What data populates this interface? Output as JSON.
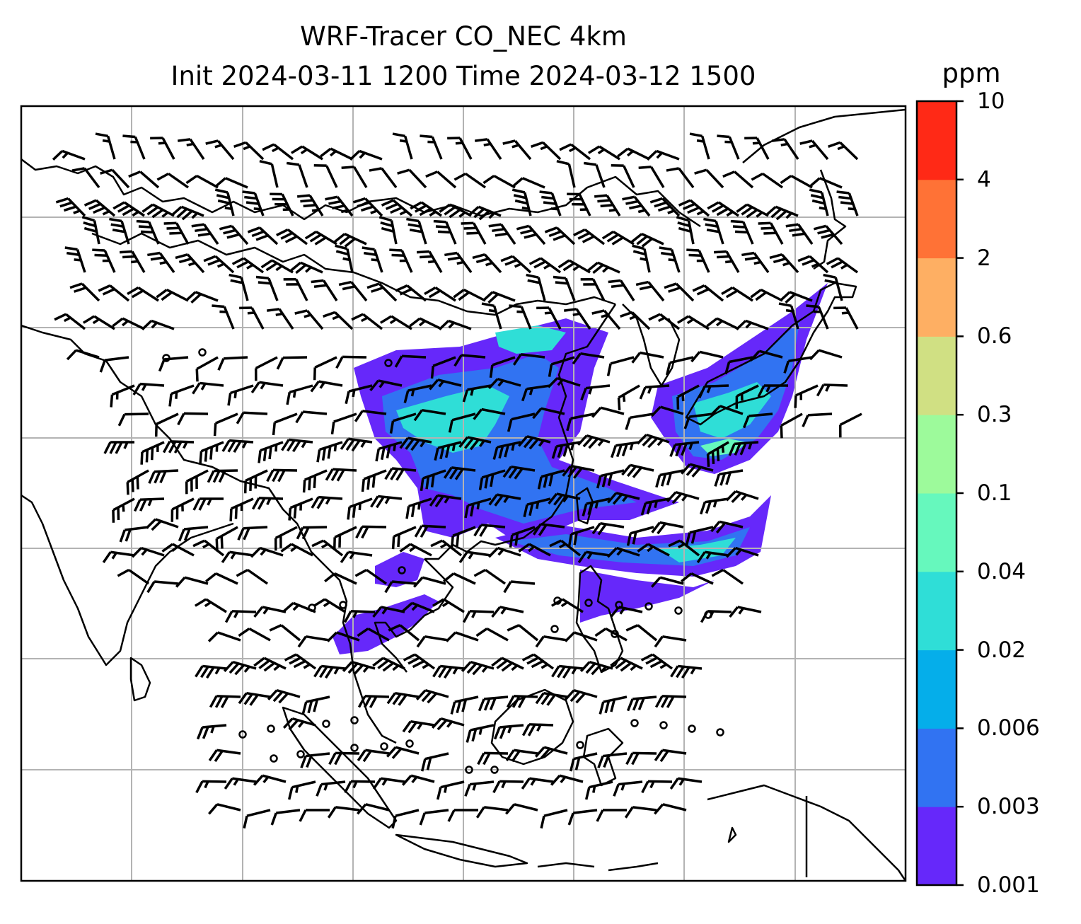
{
  "title": {
    "line1": "WRF-Tracer CO_NEC 4km",
    "line2": "Init 2024-03-11 1200 Time 2024-03-12 1500"
  },
  "colorbar": {
    "unit": "ppm",
    "levels": [
      "0.001",
      "0.003",
      "0.006",
      "0.02",
      "0.04",
      "0.1",
      "0.3",
      "0.6",
      "2",
      "4",
      "10"
    ],
    "colors": [
      "#6628fa",
      "#3173f2",
      "#05aeea",
      "#2fded7",
      "#66f8bd",
      "#9dfa9b",
      "#d0e083",
      "#feaf63",
      "#ff7236",
      "#ff2916"
    ]
  },
  "map": {
    "gridline_color": "#b3b3b3",
    "coastline_color": "#000000",
    "wind_barbs": true,
    "tracer_field": "CO_NEC"
  }
}
